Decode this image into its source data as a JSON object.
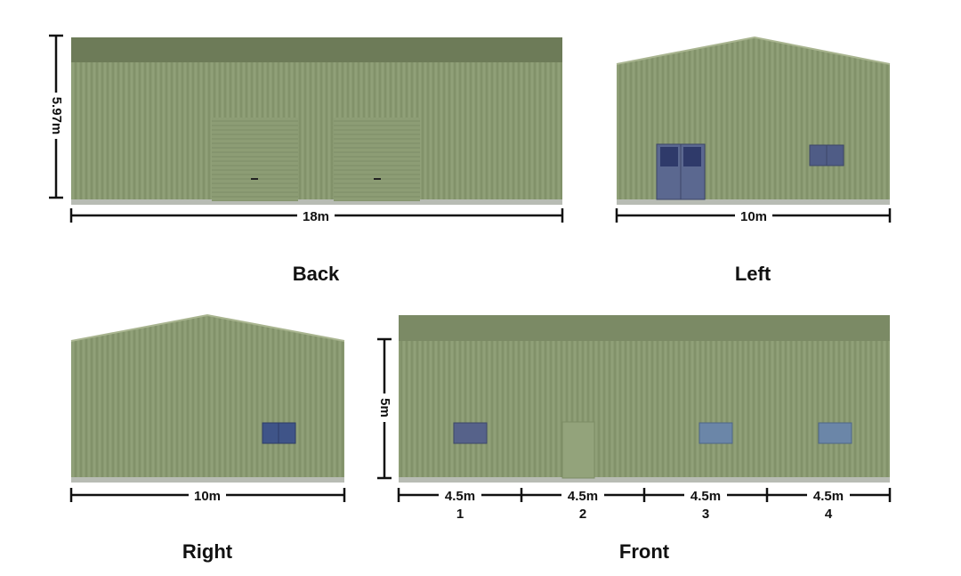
{
  "views": {
    "back": {
      "height_label": "5.97m",
      "width_label": "18m",
      "title": "Back"
    },
    "left": {
      "width_label": "10m",
      "title": "Left"
    },
    "right": {
      "width_label": "10m",
      "title": "Right"
    },
    "front": {
      "height_label": "5m",
      "title": "Front",
      "bays": [
        {
          "width": "4.5m",
          "number": "1"
        },
        {
          "width": "4.5m",
          "number": "2"
        },
        {
          "width": "4.5m",
          "number": "3"
        },
        {
          "width": "4.5m",
          "number": "4"
        }
      ]
    }
  }
}
